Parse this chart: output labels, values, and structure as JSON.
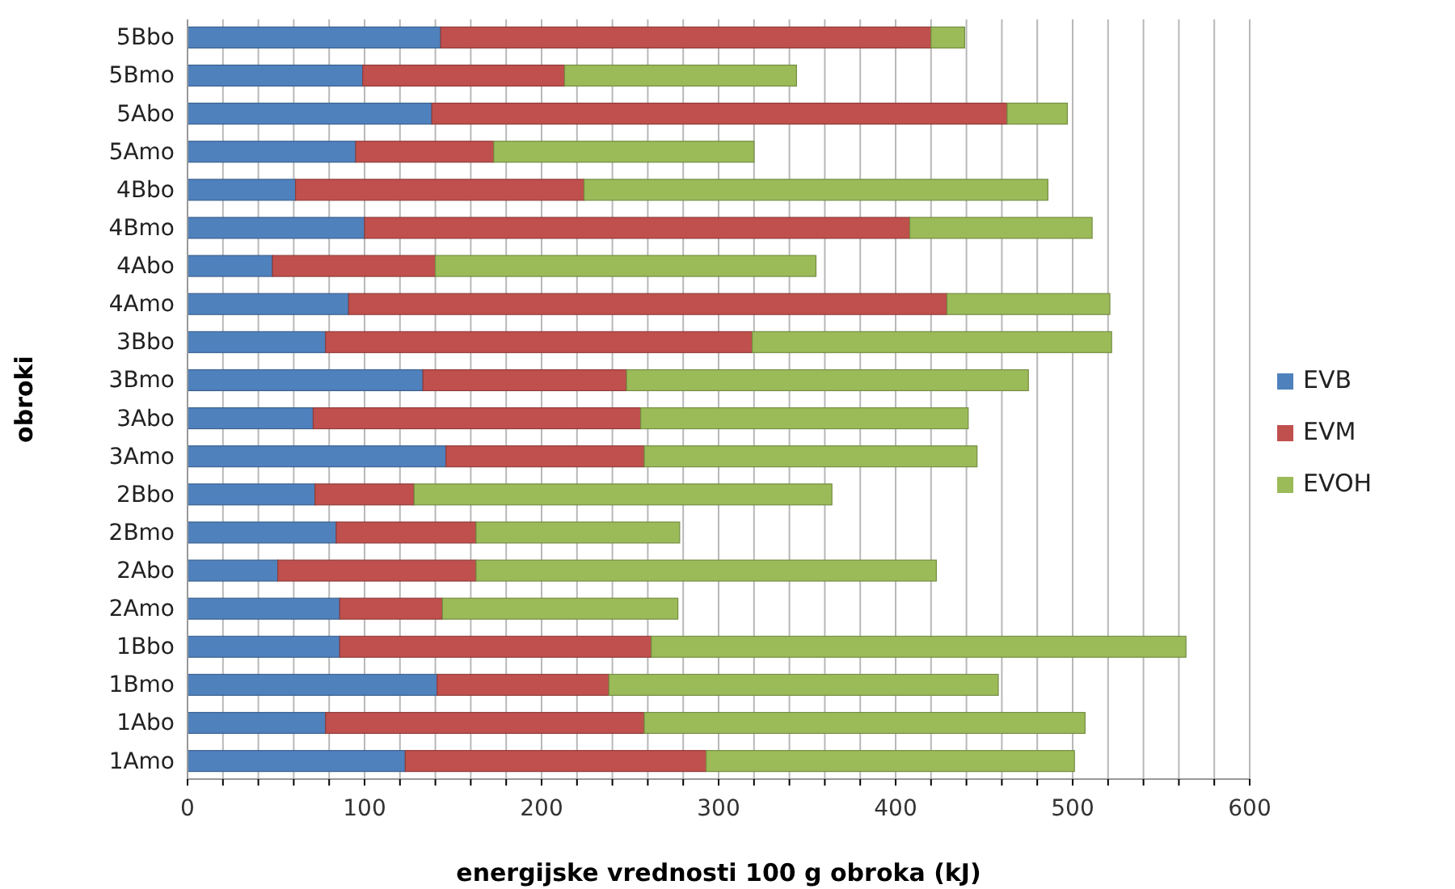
{
  "chart_data": {
    "type": "bar",
    "orientation": "horizontal",
    "stacked": true,
    "xlabel": "energijske vrednosti 100 g obroka (kJ)",
    "ylabel": "obroki",
    "categories": [
      "5Bbo",
      "5Bmo",
      "5Abo",
      "5Amo",
      "4Bbo",
      "4Bmo",
      "4Abo",
      "4Amo",
      "3Bbo",
      "3Bmo",
      "3Abo",
      "3Amo",
      "2Bbo",
      "2Bmo",
      "2Abo",
      "2Amo",
      "1Bbo",
      "1Bmo",
      "1Abo",
      "1Amo"
    ],
    "series": [
      {
        "name": "EVB",
        "color": "#4f81bd",
        "values": [
          143,
          99,
          138,
          95,
          61,
          100,
          48,
          91,
          78,
          133,
          71,
          146,
          72,
          84,
          51,
          86,
          86,
          141,
          78,
          123
        ]
      },
      {
        "name": "EVM",
        "color": "#c0504d",
        "values": [
          277,
          114,
          325,
          78,
          163,
          308,
          92,
          338,
          241,
          115,
          185,
          112,
          56,
          79,
          112,
          58,
          176,
          97,
          180,
          170
        ]
      },
      {
        "name": "EVOH",
        "color": "#9bbb59",
        "values": [
          19,
          131,
          34,
          147,
          262,
          103,
          215,
          92,
          203,
          227,
          185,
          188,
          236,
          115,
          260,
          133,
          302,
          220,
          249,
          208
        ]
      }
    ],
    "xlim": [
      0,
      600
    ],
    "xticks": [
      0,
      {
        "value": 20,
        "label": null
      },
      {
        "value": 40,
        "label": null
      },
      {
        "value": 60,
        "label": null
      },
      {
        "value": 80,
        "label": null
      },
      100,
      {
        "value": 120,
        "label": null
      },
      {
        "value": 140,
        "label": null
      },
      {
        "value": 160,
        "label": null
      },
      {
        "value": 180,
        "label": null
      },
      200,
      {
        "value": 220,
        "label": null
      },
      {
        "value": 240,
        "label": null
      },
      {
        "value": 260,
        "label": null
      },
      {
        "value": 280,
        "label": null
      },
      300,
      {
        "value": 320,
        "label": null
      },
      {
        "value": 340,
        "label": null
      },
      {
        "value": 360,
        "label": null
      },
      {
        "value": 380,
        "label": null
      },
      400,
      {
        "value": 420,
        "label": null
      },
      {
        "value": 440,
        "label": null
      },
      {
        "value": 460,
        "label": null
      },
      {
        "value": 480,
        "label": null
      },
      500,
      {
        "value": 520,
        "label": null
      },
      {
        "value": 540,
        "label": null
      },
      {
        "value": 560,
        "label": null
      },
      {
        "value": 580,
        "label": null
      },
      600
    ],
    "grid": "x",
    "legend": "right"
  }
}
